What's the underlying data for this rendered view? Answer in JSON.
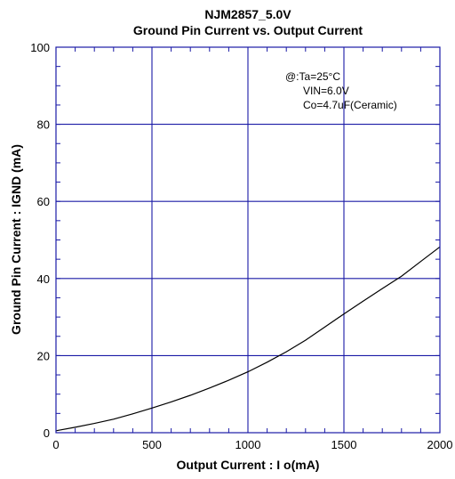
{
  "chart_data": {
    "type": "line",
    "title": "NJM2857_5.0V",
    "subtitle": "Ground Pin Current vs. Output Current",
    "xlabel": "Output Current : I o(mA)",
    "ylabel": "Ground Pin Current : IGND (mA)",
    "xlim": [
      0,
      2000
    ],
    "ylim": [
      0,
      100
    ],
    "x_ticks": [
      "0",
      "500",
      "1000",
      "1500",
      "2000"
    ],
    "y_ticks": [
      "0",
      "20",
      "40",
      "60",
      "80",
      "100"
    ],
    "grid": true,
    "annotations": [
      "@:Ta=25°C",
      "VIN=6.0V",
      "Co=4.7uF(Ceramic)"
    ],
    "series": [
      {
        "x": [
          0,
          100,
          200,
          300,
          400,
          500,
          600,
          700,
          800,
          900,
          1000,
          1100,
          1200,
          1300,
          1400,
          1500,
          1600,
          1700,
          1800,
          1900,
          2000
        ],
        "y": [
          0.5,
          1.4,
          2.4,
          3.5,
          4.9,
          6.4,
          8.0,
          9.7,
          11.6,
          13.6,
          15.8,
          18.3,
          21.0,
          24.0,
          27.4,
          30.8,
          34.1,
          37.4,
          40.6,
          44.4,
          48.2
        ]
      }
    ]
  }
}
